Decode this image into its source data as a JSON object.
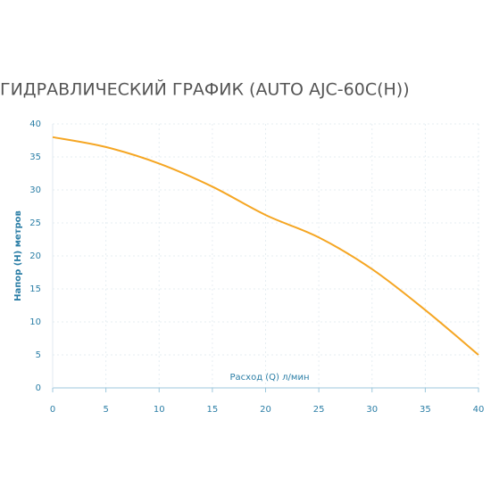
{
  "chart_data": {
    "type": "line",
    "title": "ГИДРАВЛИЧЕСКИЙ ГРАФИК (AUTO AJC-60C(H))",
    "x_label": "Расход (Q) л/мин",
    "y_label": "Напор (Н) метров",
    "x": [
      0,
      5,
      10,
      15,
      20,
      25,
      30,
      35,
      40
    ],
    "values": [
      38,
      36.5,
      34,
      30.5,
      26.2,
      22.8,
      18,
      11.8,
      5
    ],
    "color": "#f5a623",
    "xlim": [
      0,
      40
    ],
    "xticks": [
      0,
      5,
      10,
      15,
      20,
      25,
      30,
      35,
      40
    ],
    "ylim": [
      0,
      40
    ],
    "yticks": [
      0,
      5,
      10,
      15,
      20,
      25,
      30,
      35,
      40
    ],
    "grid": true
  }
}
